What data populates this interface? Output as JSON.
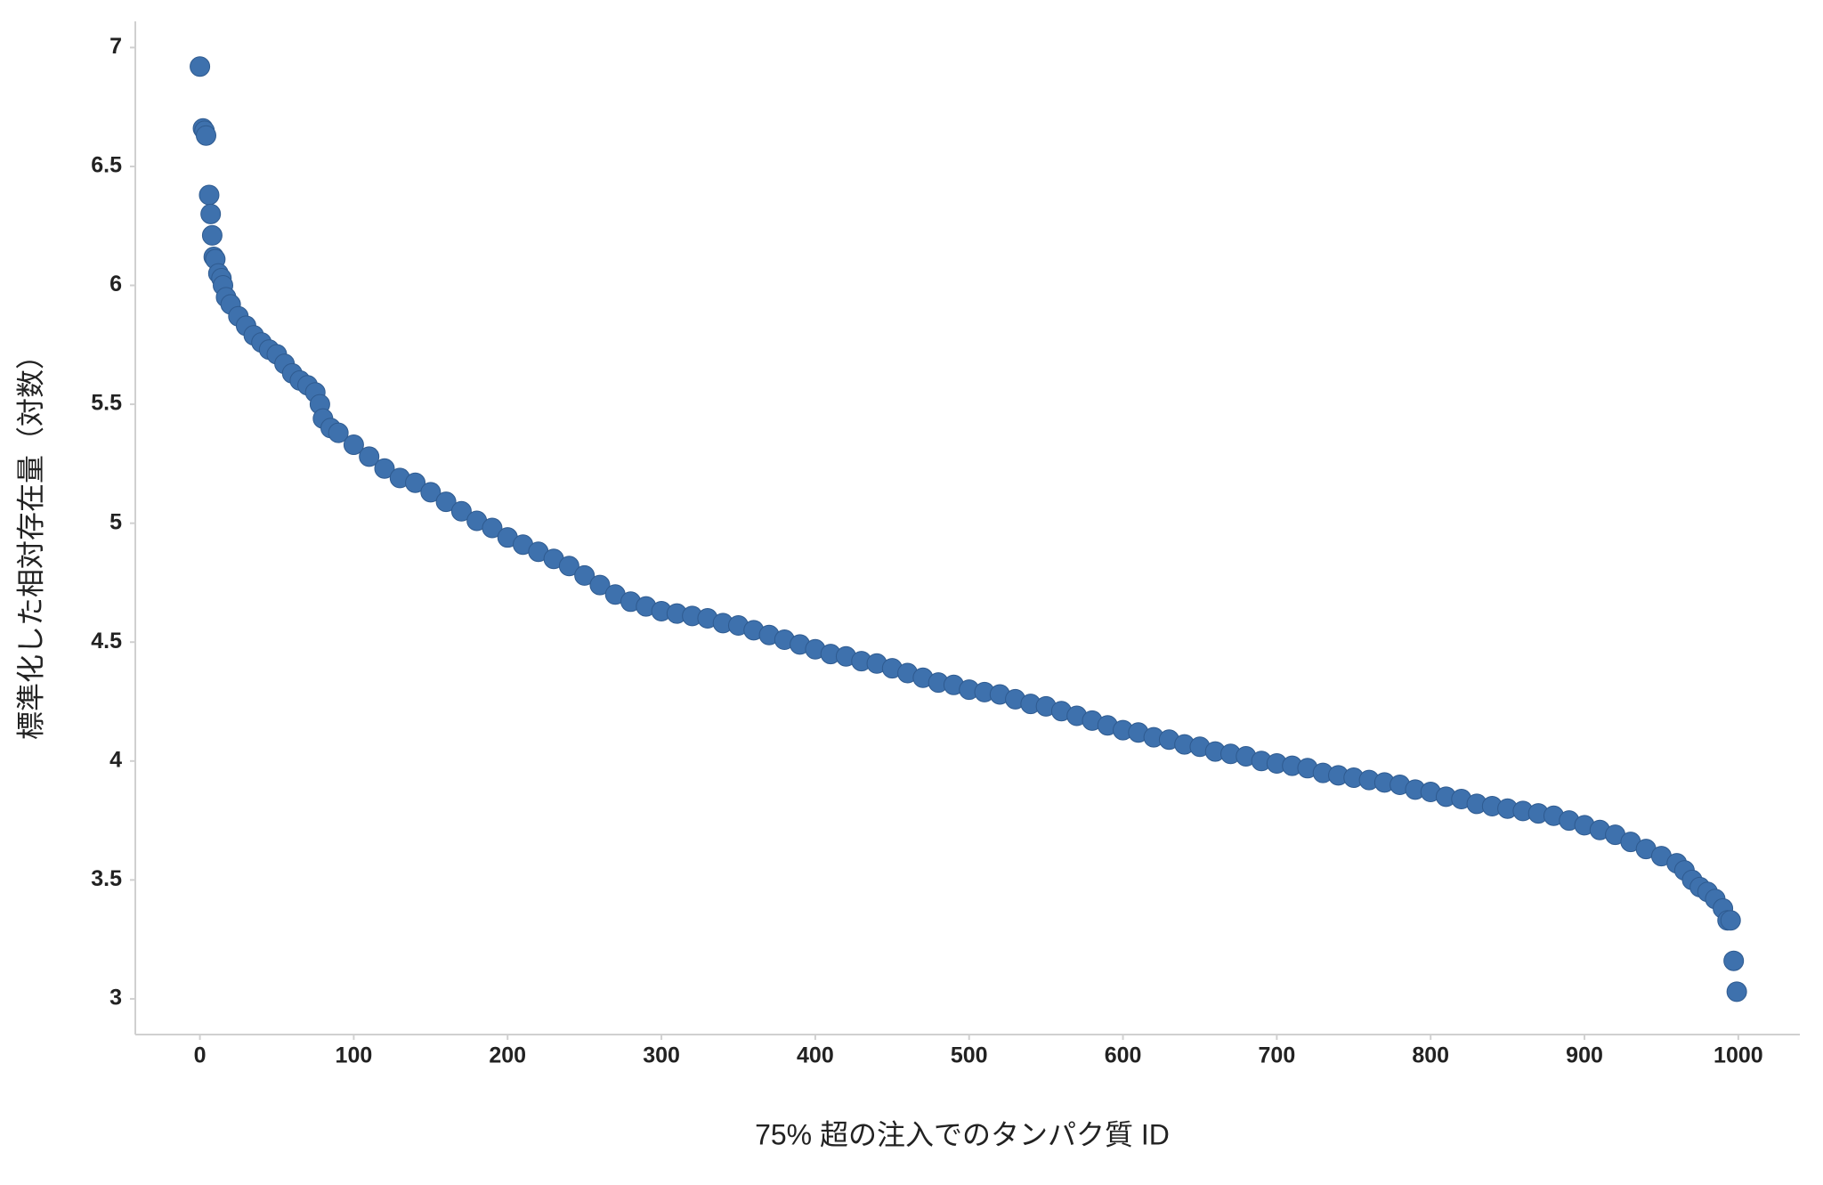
{
  "chart_data": {
    "type": "scatter",
    "x_label": "75% 超の注入でのタンパク質 ID",
    "y_label": "標準化した相対存在量（対数）",
    "color": "#3e71ad",
    "xlim": [
      -42,
      1040
    ],
    "ylim": [
      2.85,
      7.11
    ],
    "xticks": [
      0,
      100,
      200,
      300,
      400,
      500,
      600,
      700,
      800,
      900,
      1000
    ],
    "yticks": [
      3,
      3.5,
      4,
      4.5,
      5,
      5.5,
      6,
      6.5,
      7
    ],
    "grid": false,
    "x": [
      0,
      2,
      3,
      4,
      6,
      7,
      8,
      9,
      10,
      12,
      14,
      15,
      17,
      20,
      25,
      30,
      35,
      40,
      45,
      50,
      55,
      60,
      65,
      70,
      75,
      78,
      80,
      85,
      90,
      100,
      110,
      120,
      130,
      140,
      150,
      160,
      170,
      180,
      190,
      200,
      210,
      220,
      230,
      240,
      250,
      260,
      270,
      280,
      290,
      300,
      310,
      320,
      330,
      340,
      350,
      360,
      370,
      380,
      390,
      400,
      410,
      420,
      430,
      440,
      450,
      460,
      470,
      480,
      490,
      500,
      510,
      520,
      530,
      540,
      550,
      560,
      570,
      580,
      590,
      600,
      610,
      620,
      630,
      640,
      650,
      660,
      670,
      680,
      690,
      700,
      710,
      720,
      730,
      740,
      750,
      760,
      770,
      780,
      790,
      800,
      810,
      820,
      830,
      840,
      850,
      860,
      870,
      880,
      890,
      900,
      910,
      920,
      930,
      940,
      950,
      960,
      965,
      970,
      975,
      980,
      985,
      990,
      993,
      995,
      997,
      999
    ],
    "values": [
      6.92,
      6.66,
      6.65,
      6.63,
      6.38,
      6.3,
      6.21,
      6.12,
      6.11,
      6.05,
      6.03,
      6.0,
      5.95,
      5.92,
      5.87,
      5.83,
      5.79,
      5.76,
      5.73,
      5.71,
      5.67,
      5.63,
      5.6,
      5.58,
      5.55,
      5.5,
      5.44,
      5.4,
      5.38,
      5.33,
      5.28,
      5.23,
      5.19,
      5.17,
      5.13,
      5.09,
      5.05,
      5.01,
      4.98,
      4.94,
      4.91,
      4.88,
      4.85,
      4.82,
      4.78,
      4.74,
      4.7,
      4.67,
      4.65,
      4.63,
      4.62,
      4.61,
      4.6,
      4.58,
      4.57,
      4.55,
      4.53,
      4.51,
      4.49,
      4.47,
      4.45,
      4.44,
      4.42,
      4.41,
      4.39,
      4.37,
      4.35,
      4.33,
      4.32,
      4.3,
      4.29,
      4.28,
      4.26,
      4.24,
      4.23,
      4.21,
      4.19,
      4.17,
      4.15,
      4.13,
      4.12,
      4.1,
      4.09,
      4.07,
      4.06,
      4.04,
      4.03,
      4.02,
      4.0,
      3.99,
      3.98,
      3.97,
      3.95,
      3.94,
      3.93,
      3.92,
      3.91,
      3.9,
      3.88,
      3.87,
      3.85,
      3.84,
      3.82,
      3.81,
      3.8,
      3.79,
      3.78,
      3.77,
      3.75,
      3.73,
      3.71,
      3.69,
      3.66,
      3.63,
      3.6,
      3.57,
      3.54,
      3.5,
      3.47,
      3.45,
      3.42,
      3.38,
      3.33,
      3.33,
      3.16,
      3.03
    ]
  }
}
